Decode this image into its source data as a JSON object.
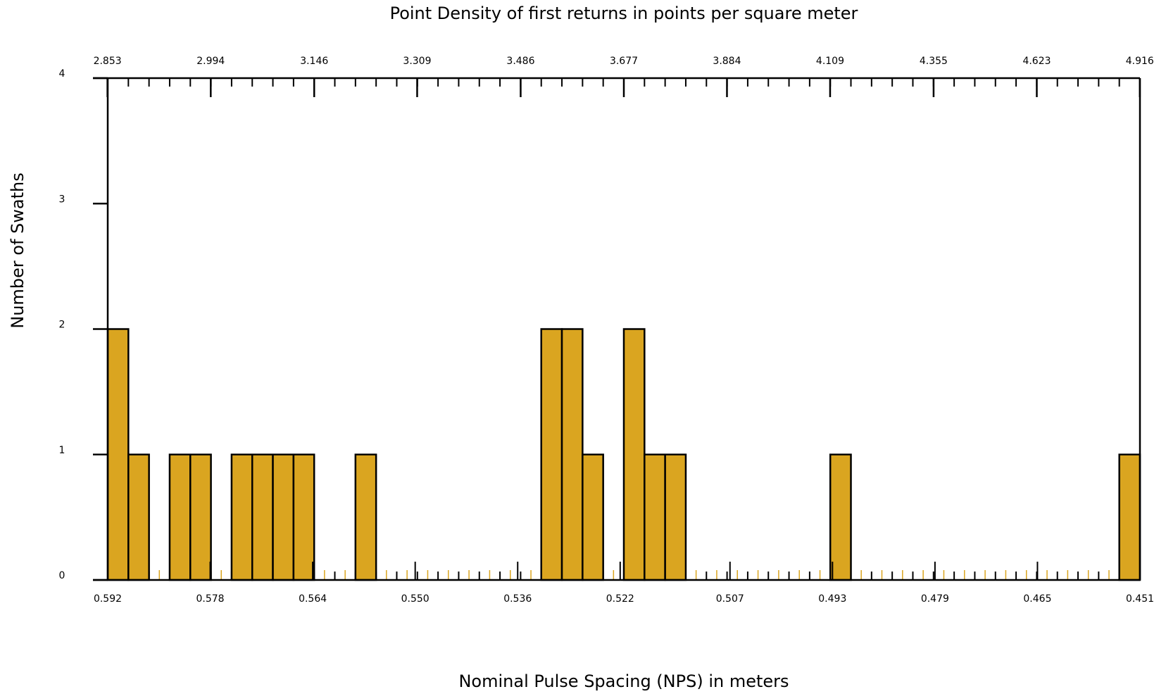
{
  "chart_data": {
    "type": "histogram",
    "title": "Point Density of first returns in points per square meter",
    "xlabel": "Nominal Pulse Spacing (NPS) in meters",
    "ylabel": "Number of Swaths",
    "bins": [
      0.592,
      0.58918,
      0.58636,
      0.58354,
      0.58072,
      0.5779,
      0.57508,
      0.57226,
      0.56944,
      0.56662,
      0.5638,
      0.56098,
      0.55816,
      0.55534,
      0.55252,
      0.5497,
      0.54688,
      0.54406,
      0.54124,
      0.53842,
      0.5356,
      0.53278,
      0.52996,
      0.52714,
      0.52432,
      0.5215,
      0.51868,
      0.51586,
      0.51304,
      0.51022,
      0.5074,
      0.50458,
      0.50176,
      0.49894,
      0.49612,
      0.4933,
      0.49048,
      0.48766,
      0.48484,
      0.48202,
      0.4792,
      0.47638,
      0.47356,
      0.47074,
      0.46792,
      0.4651,
      0.46228,
      0.45946,
      0.45664,
      0.45382,
      0.451
    ],
    "values": [
      2,
      1,
      0,
      1,
      1,
      0,
      1,
      1,
      1,
      1,
      0,
      0,
      1,
      0,
      0,
      0,
      0,
      0,
      0,
      0,
      0,
      2,
      2,
      1,
      0,
      2,
      1,
      1,
      0,
      0,
      0,
      0,
      0,
      0,
      0,
      1,
      0,
      0,
      0,
      0,
      0,
      0,
      0,
      0,
      0,
      0,
      0,
      0,
      0,
      1
    ],
    "color": "#daa520",
    "xlim": [
      0.592,
      0.451
    ],
    "xticks": [
      0.592,
      0.578,
      0.564,
      {
        "value": 0.55,
        "label": "0.550"
      },
      0.536,
      0.522,
      0.507,
      0.493,
      0.479,
      0.465,
      0.451
    ],
    "x2ticks": [
      2.853,
      2.994,
      3.146,
      3.309,
      3.486,
      3.677,
      3.884,
      4.109,
      4.355,
      4.623,
      4.916
    ],
    "ylim": [
      0,
      4
    ],
    "yticks": [
      0,
      1,
      2,
      3,
      4
    ]
  }
}
